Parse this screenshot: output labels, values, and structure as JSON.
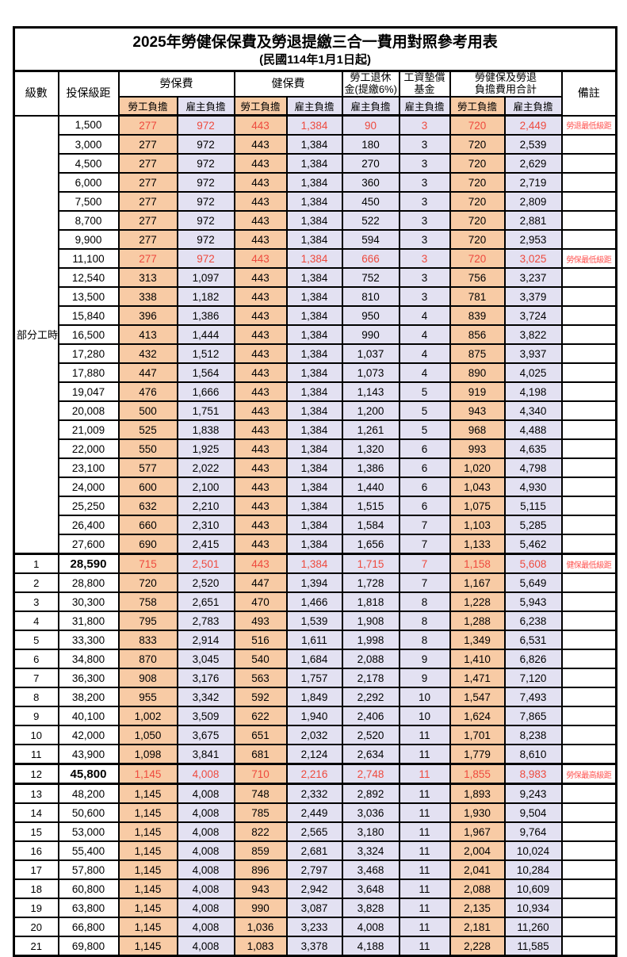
{
  "title": "2025年勞健保保費及勞退提繳三合一費用對照參考用表",
  "subtitle": "(民國114年1月1日起)",
  "colors": {
    "employee_col_bg": "#F8CBA5",
    "employer_col_bg": "#E3E1F2",
    "red_number_text": "#EE4A3E",
    "red_remark_text": "#FF5350",
    "border": "#000000"
  },
  "header": {
    "level": "級數",
    "bracket": "投保級距",
    "labor_insurance": "勞保費",
    "health_insurance": "健保費",
    "pension_line1": "勞工退休",
    "pension_line2": "金(提繳6%)",
    "wage_fund_line1": "工資墊償",
    "wage_fund_line2": "基金",
    "total_line1": "勞健保及勞退",
    "total_line2": "負擔費用合計",
    "remark": "備註",
    "employee_share": "勞工負擔",
    "employer_share": "雇主負擔"
  },
  "merged_level": {
    "label": "部分工時",
    "rowspan": 23
  },
  "table": {
    "rows": [
      {
        "level": "",
        "bracket": "1,500",
        "cells": [
          "277",
          "972",
          "443",
          "1,384",
          "90",
          "3",
          "720",
          "2,449"
        ],
        "remark": "勞退最低級距",
        "red": true
      },
      {
        "level": "",
        "bracket": "3,000",
        "cells": [
          "277",
          "972",
          "443",
          "1,384",
          "180",
          "3",
          "720",
          "2,539"
        ],
        "remark": ""
      },
      {
        "level": "",
        "bracket": "4,500",
        "cells": [
          "277",
          "972",
          "443",
          "1,384",
          "270",
          "3",
          "720",
          "2,629"
        ],
        "remark": ""
      },
      {
        "level": "",
        "bracket": "6,000",
        "cells": [
          "277",
          "972",
          "443",
          "1,384",
          "360",
          "3",
          "720",
          "2,719"
        ],
        "remark": ""
      },
      {
        "level": "",
        "bracket": "7,500",
        "cells": [
          "277",
          "972",
          "443",
          "1,384",
          "450",
          "3",
          "720",
          "2,809"
        ],
        "remark": ""
      },
      {
        "level": "",
        "bracket": "8,700",
        "cells": [
          "277",
          "972",
          "443",
          "1,384",
          "522",
          "3",
          "720",
          "2,881"
        ],
        "remark": ""
      },
      {
        "level": "",
        "bracket": "9,900",
        "cells": [
          "277",
          "972",
          "443",
          "1,384",
          "594",
          "3",
          "720",
          "2,953"
        ],
        "remark": ""
      },
      {
        "level": "",
        "bracket": "11,100",
        "cells": [
          "277",
          "972",
          "443",
          "1,384",
          "666",
          "3",
          "720",
          "3,025"
        ],
        "remark": "勞保最低級距",
        "red": true
      },
      {
        "level": "",
        "bracket": "12,540",
        "cells": [
          "313",
          "1,097",
          "443",
          "1,384",
          "752",
          "3",
          "756",
          "3,237"
        ],
        "remark": ""
      },
      {
        "level": "",
        "bracket": "13,500",
        "cells": [
          "338",
          "1,182",
          "443",
          "1,384",
          "810",
          "3",
          "781",
          "3,379"
        ],
        "remark": ""
      },
      {
        "level": "",
        "bracket": "15,840",
        "cells": [
          "396",
          "1,386",
          "443",
          "1,384",
          "950",
          "4",
          "839",
          "3,724"
        ],
        "remark": ""
      },
      {
        "level": "",
        "bracket": "16,500",
        "cells": [
          "413",
          "1,444",
          "443",
          "1,384",
          "990",
          "4",
          "856",
          "3,822"
        ],
        "remark": ""
      },
      {
        "level": "",
        "bracket": "17,280",
        "cells": [
          "432",
          "1,512",
          "443",
          "1,384",
          "1,037",
          "4",
          "875",
          "3,937"
        ],
        "remark": ""
      },
      {
        "level": "",
        "bracket": "17,880",
        "cells": [
          "447",
          "1,564",
          "443",
          "1,384",
          "1,073",
          "4",
          "890",
          "4,025"
        ],
        "remark": ""
      },
      {
        "level": "",
        "bracket": "19,047",
        "cells": [
          "476",
          "1,666",
          "443",
          "1,384",
          "1,143",
          "5",
          "919",
          "4,198"
        ],
        "remark": ""
      },
      {
        "level": "",
        "bracket": "20,008",
        "cells": [
          "500",
          "1,751",
          "443",
          "1,384",
          "1,200",
          "5",
          "943",
          "4,340"
        ],
        "remark": ""
      },
      {
        "level": "",
        "bracket": "21,009",
        "cells": [
          "525",
          "1,838",
          "443",
          "1,384",
          "1,261",
          "5",
          "968",
          "4,488"
        ],
        "remark": ""
      },
      {
        "level": "",
        "bracket": "22,000",
        "cells": [
          "550",
          "1,925",
          "443",
          "1,384",
          "1,320",
          "6",
          "993",
          "4,635"
        ],
        "remark": ""
      },
      {
        "level": "",
        "bracket": "23,100",
        "cells": [
          "577",
          "2,022",
          "443",
          "1,384",
          "1,386",
          "6",
          "1,020",
          "4,798"
        ],
        "remark": ""
      },
      {
        "level": "",
        "bracket": "24,000",
        "cells": [
          "600",
          "2,100",
          "443",
          "1,384",
          "1,440",
          "6",
          "1,043",
          "4,930"
        ],
        "remark": ""
      },
      {
        "level": "",
        "bracket": "25,250",
        "cells": [
          "632",
          "2,210",
          "443",
          "1,384",
          "1,515",
          "6",
          "1,075",
          "5,115"
        ],
        "remark": ""
      },
      {
        "level": "",
        "bracket": "26,400",
        "cells": [
          "660",
          "2,310",
          "443",
          "1,384",
          "1,584",
          "7",
          "1,103",
          "5,285"
        ],
        "remark": ""
      },
      {
        "level": "",
        "bracket": "27,600",
        "cells": [
          "690",
          "2,415",
          "443",
          "1,384",
          "1,656",
          "7",
          "1,133",
          "5,462"
        ],
        "remark": ""
      },
      {
        "level": "1",
        "bracket": "28,590",
        "cells": [
          "715",
          "2,501",
          "443",
          "1,384",
          "1,715",
          "7",
          "1,158",
          "5,608"
        ],
        "remark": "健保最低級距",
        "red": true,
        "bold": true,
        "thickTop": true
      },
      {
        "level": "2",
        "bracket": "28,800",
        "cells": [
          "720",
          "2,520",
          "447",
          "1,394",
          "1,728",
          "7",
          "1,167",
          "5,649"
        ],
        "remark": ""
      },
      {
        "level": "3",
        "bracket": "30,300",
        "cells": [
          "758",
          "2,651",
          "470",
          "1,466",
          "1,818",
          "8",
          "1,228",
          "5,943"
        ],
        "remark": ""
      },
      {
        "level": "4",
        "bracket": "31,800",
        "cells": [
          "795",
          "2,783",
          "493",
          "1,539",
          "1,908",
          "8",
          "1,288",
          "6,238"
        ],
        "remark": ""
      },
      {
        "level": "5",
        "bracket": "33,300",
        "cells": [
          "833",
          "2,914",
          "516",
          "1,611",
          "1,998",
          "8",
          "1,349",
          "6,531"
        ],
        "remark": ""
      },
      {
        "level": "6",
        "bracket": "34,800",
        "cells": [
          "870",
          "3,045",
          "540",
          "1,684",
          "2,088",
          "9",
          "1,410",
          "6,826"
        ],
        "remark": ""
      },
      {
        "level": "7",
        "bracket": "36,300",
        "cells": [
          "908",
          "3,176",
          "563",
          "1,757",
          "2,178",
          "9",
          "1,471",
          "7,120"
        ],
        "remark": ""
      },
      {
        "level": "8",
        "bracket": "38,200",
        "cells": [
          "955",
          "3,342",
          "592",
          "1,849",
          "2,292",
          "10",
          "1,547",
          "7,493"
        ],
        "remark": ""
      },
      {
        "level": "9",
        "bracket": "40,100",
        "cells": [
          "1,002",
          "3,509",
          "622",
          "1,940",
          "2,406",
          "10",
          "1,624",
          "7,865"
        ],
        "remark": ""
      },
      {
        "level": "10",
        "bracket": "42,000",
        "cells": [
          "1,050",
          "3,675",
          "651",
          "2,032",
          "2,520",
          "11",
          "1,701",
          "8,238"
        ],
        "remark": ""
      },
      {
        "level": "11",
        "bracket": "43,900",
        "cells": [
          "1,098",
          "3,841",
          "681",
          "2,124",
          "2,634",
          "11",
          "1,779",
          "8,610"
        ],
        "remark": ""
      },
      {
        "level": "12",
        "bracket": "45,800",
        "cells": [
          "1,145",
          "4,008",
          "710",
          "2,216",
          "2,748",
          "11",
          "1,855",
          "8,983"
        ],
        "remark": "勞保最高級距",
        "red": true,
        "bold": true,
        "thickTop": true,
        "thickBottom": true
      },
      {
        "level": "13",
        "bracket": "48,200",
        "cells": [
          "1,145",
          "4,008",
          "748",
          "2,332",
          "2,892",
          "11",
          "1,893",
          "9,243"
        ],
        "remark": ""
      },
      {
        "level": "14",
        "bracket": "50,600",
        "cells": [
          "1,145",
          "4,008",
          "785",
          "2,449",
          "3,036",
          "11",
          "1,930",
          "9,504"
        ],
        "remark": ""
      },
      {
        "level": "15",
        "bracket": "53,000",
        "cells": [
          "1,145",
          "4,008",
          "822",
          "2,565",
          "3,180",
          "11",
          "1,967",
          "9,764"
        ],
        "remark": ""
      },
      {
        "level": "16",
        "bracket": "55,400",
        "cells": [
          "1,145",
          "4,008",
          "859",
          "2,681",
          "3,324",
          "11",
          "2,004",
          "10,024"
        ],
        "remark": ""
      },
      {
        "level": "17",
        "bracket": "57,800",
        "cells": [
          "1,145",
          "4,008",
          "896",
          "2,797",
          "3,468",
          "11",
          "2,041",
          "10,284"
        ],
        "remark": ""
      },
      {
        "level": "18",
        "bracket": "60,800",
        "cells": [
          "1,145",
          "4,008",
          "943",
          "2,942",
          "3,648",
          "11",
          "2,088",
          "10,609"
        ],
        "remark": ""
      },
      {
        "level": "19",
        "bracket": "63,800",
        "cells": [
          "1,145",
          "4,008",
          "990",
          "3,087",
          "3,828",
          "11",
          "2,135",
          "10,934"
        ],
        "remark": ""
      },
      {
        "level": "20",
        "bracket": "66,800",
        "cells": [
          "1,145",
          "4,008",
          "1,036",
          "3,233",
          "4,008",
          "11",
          "2,181",
          "11,260"
        ],
        "remark": ""
      },
      {
        "level": "21",
        "bracket": "69,800",
        "cells": [
          "1,145",
          "4,008",
          "1,083",
          "3,378",
          "4,188",
          "11",
          "2,228",
          "11,585"
        ],
        "remark": ""
      }
    ]
  }
}
